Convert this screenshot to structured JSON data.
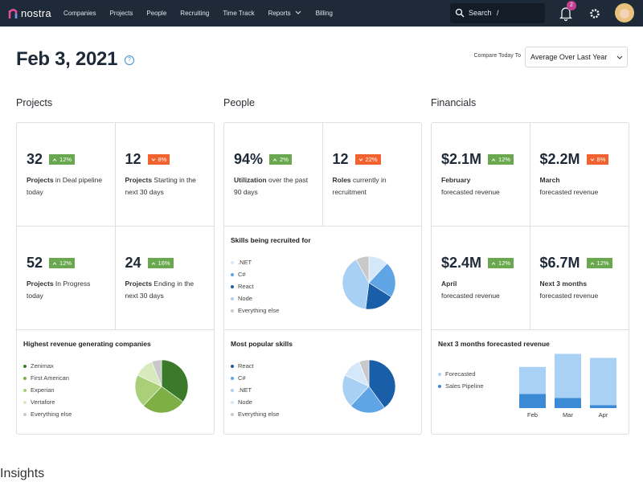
{
  "nav": {
    "logo": "nostra",
    "links": [
      "Companies",
      "Projects",
      "People",
      "Recruiting",
      "Time Track",
      "Reports",
      "Billing"
    ],
    "search": "Search",
    "search_shortcut": "/",
    "notification_count": "2"
  },
  "header": {
    "date": "Feb 3, 2021",
    "help": "?",
    "compare_label": "Compare Today To",
    "compare_value": "Average Over Last Year"
  },
  "sections": [
    {
      "title": "Projects",
      "items": [
        {
          "type": "kpi",
          "value": "32",
          "change": "12%",
          "trend": "up",
          "label_bold": "Projects",
          "label": "in Deal pipeline today"
        },
        {
          "type": "kpi",
          "value": "12",
          "change": "8%",
          "trend": "down",
          "label_bold": "Projects",
          "label": "Starting in the next 30 days"
        },
        {
          "type": "kpi",
          "value": "52",
          "change": "12%",
          "trend": "up",
          "label_bold": "Projects",
          "label": "In Progress today"
        },
        {
          "type": "kpi",
          "value": "24",
          "change": "16%",
          "trend": "up",
          "label_bold": "Projects",
          "label": "Ending in the next 30 days"
        },
        {
          "type": "pie",
          "title": "Highest revenue generating companies",
          "labels": [
            "Zenimax",
            "First American",
            "Experian",
            "Vertafore",
            "Everything else"
          ],
          "values": [
            35,
            27,
            20,
            12,
            6
          ],
          "colors": [
            "#3b7a2a",
            "#7daf45",
            "#a9cf78",
            "#d7e9bd",
            "#c9c9c9"
          ]
        }
      ]
    },
    {
      "title": "People",
      "items": [
        {
          "type": "kpi",
          "value": "94%",
          "change": "2%",
          "trend": "up",
          "label_bold": "Utilization",
          "label": "over the past 90 days"
        },
        {
          "type": "kpi",
          "value": "12",
          "change": "22%",
          "trend": "down",
          "label_bold": "Roles",
          "label": "currently in recruitment"
        },
        {
          "type": "pie",
          "title": "Skills being recruited for",
          "labels": [
            ".NET",
            "C#",
            "React",
            "Node",
            "Everything else"
          ],
          "values": [
            12,
            22,
            18,
            40,
            8
          ],
          "colors": [
            "#d5e8fa",
            "#5fa5e6",
            "#1a5ea8",
            "#a8d0f4",
            "#c9c9c9"
          ]
        },
        {
          "type": "pie",
          "title": "Most popular skills",
          "labels": [
            "React",
            "C#",
            ".NET",
            "Node",
            "Everything else"
          ],
          "values": [
            40,
            22,
            20,
            12,
            6
          ],
          "colors": [
            "#1a5ea8",
            "#5fa5e6",
            "#a8d0f4",
            "#d5e8fa",
            "#c9c9c9"
          ]
        }
      ]
    },
    {
      "title": "Financials",
      "items": [
        {
          "type": "kpi",
          "value": "$2.1M",
          "change": "12%",
          "trend": "up",
          "label_bold": "February",
          "label": "forecasted revenue"
        },
        {
          "type": "kpi",
          "value": "$2.2M",
          "change": "8%",
          "trend": "down",
          "label_bold": "March",
          "label": "forecasted revenue"
        },
        {
          "type": "kpi",
          "value": "$2.4M",
          "change": "12%",
          "trend": "up",
          "label_bold": "April",
          "label": "forecasted revenue"
        },
        {
          "type": "kpi",
          "value": "$6.7M",
          "change": "12%",
          "trend": "up",
          "label_bold": "Next 3 months",
          "label": "forecasted revenue"
        },
        {
          "type": "bar",
          "title": "Next 3 months forecasted revenue",
          "categories": [
            "Feb",
            "Mar",
            "Apr"
          ],
          "series": [
            {
              "name": "Forecasted",
              "color": "#a9d1f5",
              "values": [
                1.35,
                2.2,
                2.35
              ]
            },
            {
              "name": "Sales Pipeline",
              "color": "#3a8ad6",
              "values": [
                0.7,
                0.5,
                0.15
              ]
            }
          ]
        }
      ]
    }
  ],
  "insights": "Insights"
}
